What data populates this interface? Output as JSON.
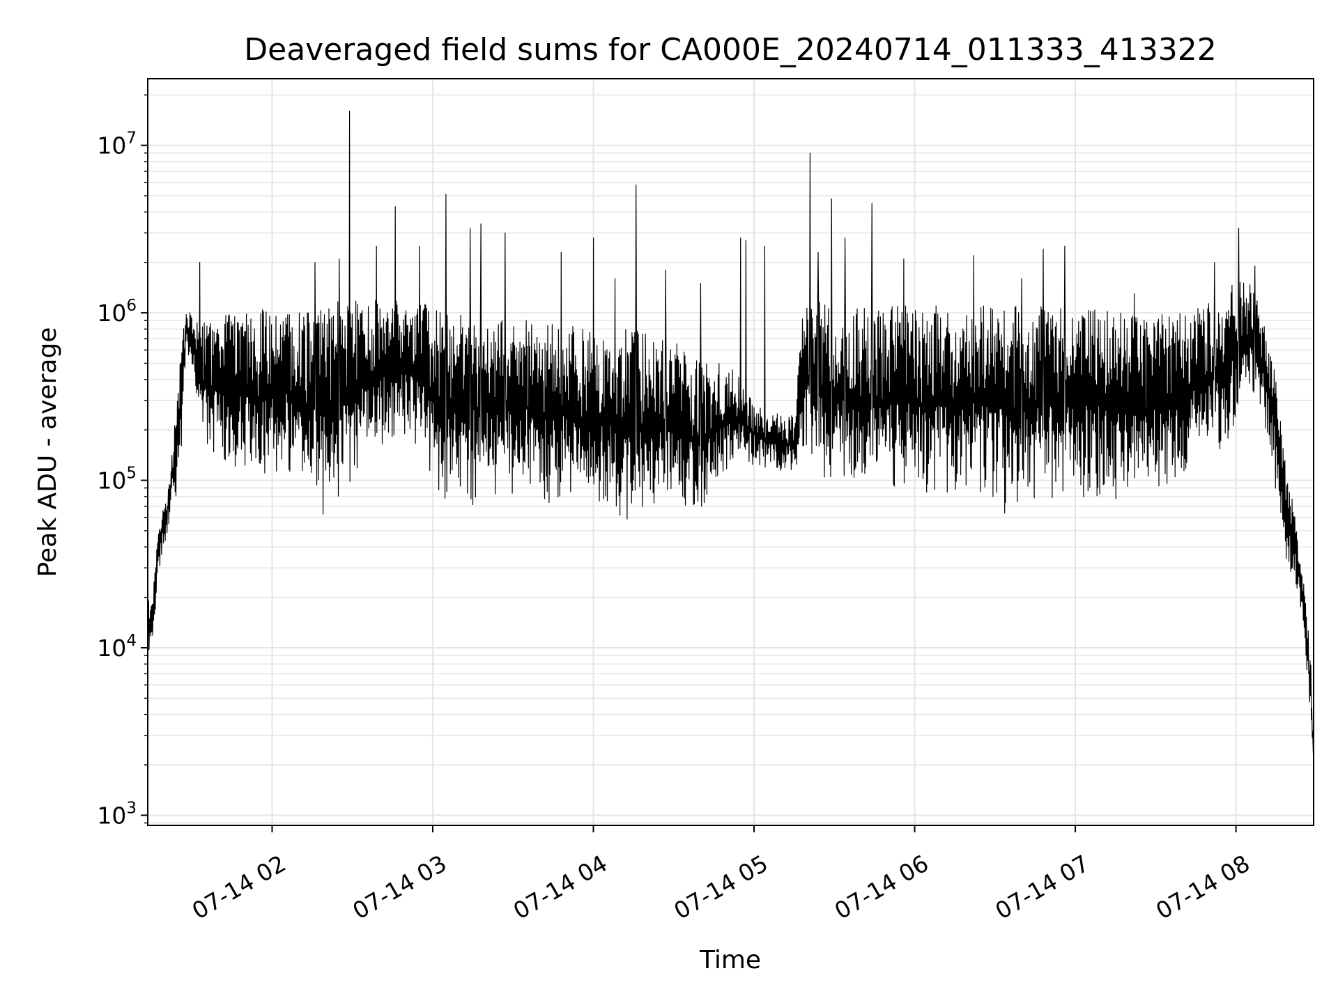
{
  "chart_data": {
    "type": "line",
    "title": "Deaveraged field sums for CA000E_20240714_011333_413322",
    "xlabel": "Time",
    "ylabel": "Peak ADU - average",
    "yscale": "log",
    "ylim": [
      870,
      25000000
    ],
    "xlim": [
      "2024-07-14 01:13:33",
      "2024-07-14 08:29:00"
    ],
    "grid": true,
    "line_color": "#000000",
    "grid_color": "#e5e5e5",
    "x_ticks": [
      {
        "t": "2024-07-14 02:00",
        "label": "07-14 02"
      },
      {
        "t": "2024-07-14 03:00",
        "label": "07-14 03"
      },
      {
        "t": "2024-07-14 04:00",
        "label": "07-14 04"
      },
      {
        "t": "2024-07-14 05:00",
        "label": "07-14 05"
      },
      {
        "t": "2024-07-14 06:00",
        "label": "07-14 06"
      },
      {
        "t": "2024-07-14 07:00",
        "label": "07-14 07"
      },
      {
        "t": "2024-07-14 08:00",
        "label": "07-14 08"
      }
    ],
    "y_ticks": [
      {
        "value": 1000,
        "base": "10",
        "exp": "3"
      },
      {
        "value": 10000,
        "base": "10",
        "exp": "4"
      },
      {
        "value": 100000,
        "base": "10",
        "exp": "5"
      },
      {
        "value": 1000000,
        "base": "10",
        "exp": "6"
      },
      {
        "value": 10000000,
        "base": "10",
        "exp": "7"
      }
    ],
    "series": [
      {
        "type": "envelope",
        "x": [
          "2024-07-14 01:13:33",
          "2024-07-14 01:15:00",
          "2024-07-14 01:18:00",
          "2024-07-14 01:21:00",
          "2024-07-14 01:25:00",
          "2024-07-14 01:28:00",
          "2024-07-14 01:31:00",
          "2024-07-14 01:34:00",
          "2024-07-14 01:37:00",
          "2024-07-14 01:40:00",
          "2024-07-14 01:44:00",
          "2024-07-14 01:50:00",
          "2024-07-14 01:55:00",
          "2024-07-14 02:00:00",
          "2024-07-14 02:05:00",
          "2024-07-14 02:10:00",
          "2024-07-14 02:15:00",
          "2024-07-14 02:20:00",
          "2024-07-14 02:25:00",
          "2024-07-14 02:30:00",
          "2024-07-14 02:35:00",
          "2024-07-14 02:40:00",
          "2024-07-14 02:45:00",
          "2024-07-14 02:50:00",
          "2024-07-14 02:55:00",
          "2024-07-14 03:00:00",
          "2024-07-14 03:05:00",
          "2024-07-14 03:10:00",
          "2024-07-14 03:15:00",
          "2024-07-14 03:20:00",
          "2024-07-14 03:25:00",
          "2024-07-14 03:30:00",
          "2024-07-14 03:35:00",
          "2024-07-14 03:40:00",
          "2024-07-14 03:45:00",
          "2024-07-14 03:50:00",
          "2024-07-14 03:55:00",
          "2024-07-14 04:00:00",
          "2024-07-14 04:05:00",
          "2024-07-14 04:10:00",
          "2024-07-14 04:15:00",
          "2024-07-14 04:20:00",
          "2024-07-14 04:25:00",
          "2024-07-14 04:30:00",
          "2024-07-14 04:35:00",
          "2024-07-14 04:40:00",
          "2024-07-14 04:45:00",
          "2024-07-14 04:50:00",
          "2024-07-14 04:55:00",
          "2024-07-14 05:00:00",
          "2024-07-14 05:05:00",
          "2024-07-14 05:10:00",
          "2024-07-14 05:15:00",
          "2024-07-14 05:18:00",
          "2024-07-14 05:20:00",
          "2024-07-14 05:25:00",
          "2024-07-14 05:30:00",
          "2024-07-14 05:35:00",
          "2024-07-14 05:40:00",
          "2024-07-14 05:45:00",
          "2024-07-14 05:50:00",
          "2024-07-14 05:55:00",
          "2024-07-14 06:00:00",
          "2024-07-14 06:05:00",
          "2024-07-14 06:10:00",
          "2024-07-14 06:15:00",
          "2024-07-14 06:20:00",
          "2024-07-14 06:25:00",
          "2024-07-14 06:30:00",
          "2024-07-14 06:35:00",
          "2024-07-14 06:40:00",
          "2024-07-14 06:45:00",
          "2024-07-14 06:50:00",
          "2024-07-14 06:55:00",
          "2024-07-14 07:00:00",
          "2024-07-14 07:05:00",
          "2024-07-14 07:10:00",
          "2024-07-14 07:15:00",
          "2024-07-14 07:20:00",
          "2024-07-14 07:25:00",
          "2024-07-14 07:30:00",
          "2024-07-14 07:35:00",
          "2024-07-14 07:40:00",
          "2024-07-14 07:45:00",
          "2024-07-14 07:50:00",
          "2024-07-14 07:55:00",
          "2024-07-14 08:00:00",
          "2024-07-14 08:05:00",
          "2024-07-14 08:10:00",
          "2024-07-14 08:14:00",
          "2024-07-14 08:17:00",
          "2024-07-14 08:20:00",
          "2024-07-14 08:23:00",
          "2024-07-14 08:26:00",
          "2024-07-14 08:28:00",
          "2024-07-14 08:29:00"
        ],
        "low": [
          10000,
          9000,
          30000,
          45000,
          80000,
          500000,
          350000,
          150000,
          130000,
          120000,
          110000,
          100000,
          90000,
          100000,
          110000,
          90000,
          70000,
          60000,
          80000,
          90000,
          120000,
          150000,
          160000,
          160000,
          150000,
          80000,
          70000,
          70000,
          70000,
          70000,
          75000,
          80000,
          80000,
          70000,
          70000,
          65000,
          60000,
          60000,
          60000,
          55000,
          55000,
          55000,
          60000,
          55000,
          55000,
          60000,
          80000,
          100000,
          120000,
          120000,
          110000,
          110000,
          110000,
          110000,
          120000,
          100000,
          90000,
          80000,
          80000,
          80000,
          80000,
          80000,
          80000,
          80000,
          80000,
          80000,
          80000,
          75000,
          70000,
          60000,
          60000,
          70000,
          75000,
          70000,
          75000,
          75000,
          70000,
          70000,
          70000,
          70000,
          75000,
          80000,
          100000,
          120000,
          150000,
          150000,
          200000,
          300000,
          250000,
          100000,
          40000,
          30000,
          20000,
          9000,
          3000,
          1500
        ],
        "high": [
          20000,
          18000,
          60000,
          100000,
          400000,
          1200000,
          900000,
          900000,
          900000,
          1000000,
          1000000,
          1000000,
          1100000,
          1000000,
          1000000,
          1000000,
          1000000,
          1100000,
          1200000,
          1200000,
          1200000,
          1200000,
          1200000,
          1200000,
          1200000,
          1100000,
          1000000,
          1000000,
          1000000,
          1000000,
          900000,
          900000,
          900000,
          800000,
          900000,
          900000,
          800000,
          800000,
          800000,
          800000,
          800000,
          800000,
          700000,
          700000,
          600000,
          500000,
          500000,
          500000,
          400000,
          300000,
          250000,
          250000,
          250000,
          1000000,
          1200000,
          1200000,
          1100000,
          1100000,
          1100000,
          1100000,
          1100000,
          1100000,
          1100000,
          1000000,
          1000000,
          1000000,
          1100000,
          1100000,
          1100000,
          1100000,
          1100000,
          1100000,
          1100000,
          1100000,
          1100000,
          1100000,
          1100000,
          1000000,
          1000000,
          1000000,
          1000000,
          1000000,
          1000000,
          1100000,
          1200000,
          1300000,
          1600000,
          1500000,
          1000000,
          600000,
          200000,
          100000,
          50000,
          20000,
          8000,
          3000
        ]
      },
      {
        "type": "spikes",
        "x": [
          "2024-07-14 01:33:00",
          "2024-07-14 02:16:00",
          "2024-07-14 02:25:00",
          "2024-07-14 02:29:00",
          "2024-07-14 02:39:00",
          "2024-07-14 02:46:00",
          "2024-07-14 02:55:00",
          "2024-07-14 03:05:00",
          "2024-07-14 03:14:00",
          "2024-07-14 03:18:00",
          "2024-07-14 03:27:00",
          "2024-07-14 03:48:00",
          "2024-07-14 04:00:00",
          "2024-07-14 04:08:00",
          "2024-07-14 04:16:00",
          "2024-07-14 04:27:00",
          "2024-07-14 04:40:00",
          "2024-07-14 04:55:00",
          "2024-07-14 04:57:00",
          "2024-07-14 05:04:00",
          "2024-07-14 05:21:00",
          "2024-07-14 05:24:00",
          "2024-07-14 05:29:00",
          "2024-07-14 05:34:00",
          "2024-07-14 05:44:00",
          "2024-07-14 05:56:00",
          "2024-07-14 06:08:00",
          "2024-07-14 06:22:00",
          "2024-07-14 06:40:00",
          "2024-07-14 06:48:00",
          "2024-07-14 06:56:00",
          "2024-07-14 07:22:00",
          "2024-07-14 07:52:00",
          "2024-07-14 08:01:00",
          "2024-07-14 08:07:00"
        ],
        "values": [
          2000000,
          2000000,
          2100000,
          16000000,
          2500000,
          4300000,
          2500000,
          5100000,
          3200000,
          3400000,
          3000000,
          2300000,
          2800000,
          1600000,
          5800000,
          1800000,
          1500000,
          2800000,
          2700000,
          2500000,
          9000000,
          2300000,
          4800000,
          2800000,
          4500000,
          2100000,
          1100000,
          2200000,
          1600000,
          2400000,
          2500000,
          1300000,
          2000000,
          3200000,
          1900000
        ]
      }
    ]
  }
}
